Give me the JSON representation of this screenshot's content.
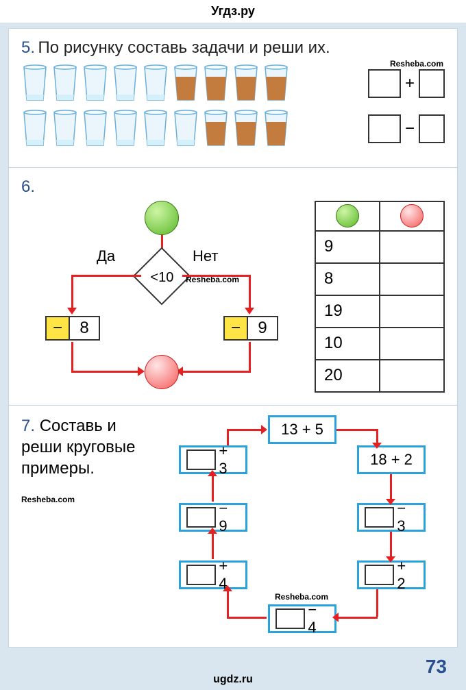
{
  "header": {
    "site_top": "Угдз.ру",
    "site_bottom": "ugdz.ru"
  },
  "watermark": "Resheba.com",
  "page_number": "73",
  "task5": {
    "num": "5.",
    "title": "По рисунку составь задачи и реши их.",
    "row1": {
      "empty_glasses": 5,
      "full_glasses": 4,
      "op": "+"
    },
    "row2": {
      "empty_glasses": 6,
      "full_glasses": 3,
      "op": "−"
    },
    "glass_empty_color": "#d4f0fb",
    "glass_full_color": "#c47b3e"
  },
  "task6": {
    "num": "6.",
    "yes_label": "Да",
    "no_label": "Нет",
    "condition": "<10",
    "left_op": "−",
    "left_val": "8",
    "right_op": "−",
    "right_val": "9",
    "table_inputs": [
      "9",
      "8",
      "19",
      "10",
      "20"
    ],
    "arrow_color": "#e62020",
    "op_bg": "#ffe445"
  },
  "task7": {
    "num": "7.",
    "title": "Составь и реши круговые примеры.",
    "boxes": {
      "top": "13 + 5",
      "tr": "18 + 2",
      "r": "− 3",
      "br": "+ 2",
      "bottom": "− 4",
      "bl": "+ 4",
      "l": "− 9",
      "tl": "+ 3"
    },
    "box_border": "#29a3d9"
  }
}
